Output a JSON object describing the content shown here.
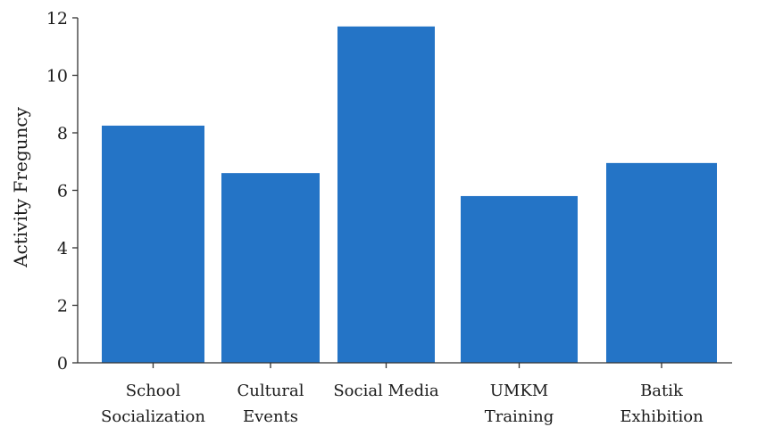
{
  "chart_data": {
    "type": "bar",
    "categories": [
      [
        "School",
        "Socialization"
      ],
      [
        "Cultural",
        "Events"
      ],
      [
        "Social Media"
      ],
      [
        "UMKM",
        "Training"
      ],
      [
        "Batik",
        "Exhibition"
      ]
    ],
    "values": [
      8.25,
      6.6,
      11.7,
      5.8,
      6.95
    ],
    "title": "",
    "xlabel": "",
    "ylabel": "Activity Freguncy",
    "ylim": [
      0,
      12
    ],
    "yticks": [
      0,
      2,
      4,
      6,
      8,
      10,
      12
    ],
    "bar_color": "#2474c6",
    "grid": false,
    "legend": "none"
  }
}
